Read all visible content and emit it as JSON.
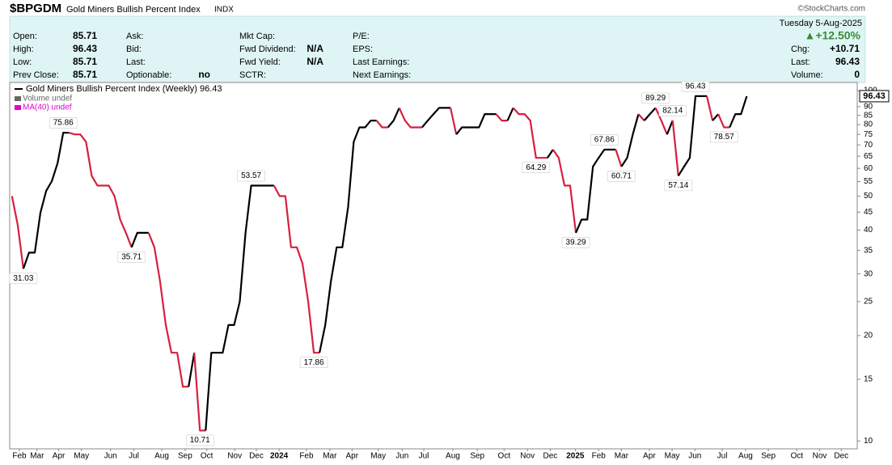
{
  "header": {
    "symbol": "$BPGDM",
    "name": "Gold Miners Bullish Percent Index",
    "exchange": "INDX",
    "source": "©StockCharts.com",
    "date": "Tuesday  5-Aug-2025",
    "change_percent": "▲+12.50%",
    "columns": [
      [
        {
          "label": "Open:",
          "value": "85.71"
        },
        {
          "label": "High:",
          "value": "96.43"
        },
        {
          "label": "Low:",
          "value": "85.71"
        },
        {
          "label": "Prev Close:",
          "value": "85.71"
        }
      ],
      [
        {
          "label": "Ask:"
        },
        {
          "label": "Bid:"
        },
        {
          "label": "Last:"
        },
        {
          "label": "Optionable:",
          "value": "no"
        }
      ],
      [
        {
          "label": "Mkt Cap:"
        },
        {
          "label": "Fwd Dividend:",
          "value": "N/A"
        },
        {
          "label": "Fwd Yield:",
          "value": "N/A"
        },
        {
          "label": "SCTR:"
        }
      ],
      [
        {
          "label": "P/E:"
        },
        {
          "label": "EPS:"
        },
        {
          "label": "Last Earnings:"
        },
        {
          "label": "Next Earnings:"
        }
      ]
    ],
    "right_column": [
      {
        "label": "Chg:",
        "value": "+10.71"
      },
      {
        "label": "Last:",
        "value": "96.43"
      },
      {
        "label": "Volume:",
        "value": "0"
      }
    ]
  },
  "chart_data": {
    "type": "line",
    "log_scale": true,
    "grid": false,
    "up_color": "#000000",
    "down_color": "#d6203f",
    "legend_extra": [
      {
        "name": "Volume undef",
        "color": "#666666"
      },
      {
        "name": "MA(40) undef",
        "color": "#e000d0"
      }
    ],
    "x": [
      0,
      1,
      2,
      3,
      4,
      5,
      6,
      7,
      8,
      9,
      10,
      11,
      12,
      13,
      14,
      15,
      16,
      17,
      18,
      19,
      20,
      21,
      22,
      23,
      24,
      25,
      26,
      27,
      28,
      29,
      30,
      31,
      32,
      33,
      34,
      35,
      36,
      37,
      38,
      39,
      40,
      41,
      42,
      43,
      44,
      45,
      46,
      47,
      48,
      49,
      50,
      51,
      52,
      53,
      54,
      55,
      56,
      57,
      58,
      59,
      60,
      61,
      62,
      63,
      64,
      65,
      66,
      67,
      68,
      69,
      70,
      71,
      72,
      73,
      74,
      75,
      76,
      77,
      78,
      79,
      80,
      81,
      82,
      83,
      84,
      85,
      86,
      87,
      88,
      89,
      90,
      91,
      92,
      93,
      94,
      95,
      96,
      97,
      98,
      99,
      100,
      101,
      102,
      103,
      104,
      105,
      106,
      107,
      108,
      109,
      110,
      111,
      112,
      113,
      114,
      115,
      116,
      117,
      118,
      119,
      120,
      121,
      122,
      123,
      124,
      125,
      126,
      127,
      128,
      129
    ],
    "series": [
      {
        "name": "Gold Miners Bullish Percent Index (Weekly) 96.43",
        "values": [
          50,
          41.38,
          31.03,
          34.48,
          34.48,
          44.83,
          51.72,
          55.17,
          62.07,
          75.86,
          75.86,
          75,
          75,
          71.43,
          57.14,
          53.57,
          53.57,
          53.57,
          50,
          42.86,
          39.29,
          35.71,
          39.29,
          39.29,
          39.29,
          35.71,
          28.57,
          21.43,
          17.86,
          17.86,
          14.29,
          14.29,
          17.86,
          10.71,
          10.71,
          17.86,
          17.86,
          17.86,
          21.43,
          21.43,
          25,
          39.29,
          53.57,
          53.57,
          53.57,
          53.57,
          53.57,
          50,
          50,
          35.71,
          35.71,
          32.14,
          25,
          17.86,
          17.86,
          21.43,
          28.57,
          35.71,
          35.71,
          46.43,
          71.43,
          78.57,
          78.57,
          82.14,
          82.14,
          78.57,
          78.57,
          82.14,
          89.29,
          82.14,
          78.57,
          78.57,
          78.57,
          82.14,
          85.71,
          89.29,
          89.29,
          89.29,
          75,
          78.57,
          78.57,
          78.57,
          78.57,
          85.71,
          85.71,
          85.71,
          82.14,
          82.14,
          89.29,
          85.71,
          85.71,
          82.14,
          64.29,
          64.29,
          64.29,
          67.86,
          64.29,
          53.57,
          53.57,
          39.29,
          42.86,
          42.86,
          60.71,
          64.29,
          67.86,
          67.86,
          67.86,
          60.71,
          64.29,
          75,
          85.71,
          82.14,
          85.71,
          89.29,
          82.14,
          75,
          82.14,
          57.14,
          60.71,
          64.29,
          96.43,
          96.43,
          96.43,
          82.14,
          85.71,
          78.57,
          78.57,
          85.71,
          85.71,
          96.43
        ],
        "label_positions": [
          null,
          null,
          "below",
          null,
          null,
          null,
          null,
          null,
          null,
          "above",
          null,
          null,
          null,
          null,
          null,
          null,
          null,
          null,
          null,
          null,
          null,
          "below",
          null,
          null,
          null,
          null,
          null,
          null,
          null,
          null,
          null,
          null,
          null,
          "below",
          null,
          null,
          null,
          null,
          null,
          null,
          null,
          null,
          "above",
          null,
          null,
          null,
          null,
          null,
          null,
          null,
          null,
          null,
          null,
          "below",
          null,
          null,
          null,
          null,
          null,
          null,
          null,
          null,
          null,
          null,
          null,
          null,
          null,
          null,
          null,
          null,
          null,
          null,
          null,
          null,
          null,
          null,
          null,
          null,
          null,
          null,
          null,
          null,
          null,
          null,
          null,
          null,
          null,
          null,
          null,
          null,
          null,
          null,
          "below",
          null,
          null,
          null,
          null,
          null,
          null,
          "below",
          null,
          null,
          null,
          null,
          "above",
          null,
          null,
          "below",
          null,
          null,
          null,
          null,
          null,
          "above",
          null,
          null,
          "above",
          "below",
          null,
          null,
          "above",
          null,
          null,
          null,
          null,
          "below",
          null,
          null,
          null,
          null
        ]
      }
    ],
    "xlim": [
      -0.4,
      148.4
    ],
    "xticks": [
      {
        "value": 1.3,
        "label": "Feb"
      },
      {
        "value": 4.4,
        "label": "Mar"
      },
      {
        "value": 8.2,
        "label": "Apr"
      },
      {
        "value": 12.2,
        "label": "May"
      },
      {
        "value": 17.3,
        "label": "Jun"
      },
      {
        "value": 21.4,
        "label": "Jul"
      },
      {
        "value": 26.3,
        "label": "Aug"
      },
      {
        "value": 30.4,
        "label": "Sep"
      },
      {
        "value": 34.2,
        "label": "Oct"
      },
      {
        "value": 39.1,
        "label": "Nov"
      },
      {
        "value": 42.9,
        "label": "Dec"
      },
      {
        "value": 46.9,
        "label": "2024"
      },
      {
        "value": 51.7,
        "label": "Feb"
      },
      {
        "value": 55.8,
        "label": "Mar"
      },
      {
        "value": 59.7,
        "label": "Apr"
      },
      {
        "value": 64.3,
        "label": "May"
      },
      {
        "value": 68.5,
        "label": "Jun"
      },
      {
        "value": 72.3,
        "label": "Jul"
      },
      {
        "value": 77.4,
        "label": "Aug"
      },
      {
        "value": 81.7,
        "label": "Sep"
      },
      {
        "value": 86.4,
        "label": "Oct"
      },
      {
        "value": 90.5,
        "label": "Nov"
      },
      {
        "value": 94.5,
        "label": "Dec"
      },
      {
        "value": 98.9,
        "label": "2025"
      },
      {
        "value": 103,
        "label": "Feb"
      },
      {
        "value": 107,
        "label": "Mar"
      },
      {
        "value": 111.9,
        "label": "Apr"
      },
      {
        "value": 115.9,
        "label": "May"
      },
      {
        "value": 119.9,
        "label": "Jun"
      },
      {
        "value": 124.7,
        "label": "Jul"
      },
      {
        "value": 128.8,
        "label": "Aug"
      },
      {
        "value": 132.8,
        "label": "Sep"
      },
      {
        "value": 137.8,
        "label": "Oct"
      },
      {
        "value": 141.8,
        "label": "Nov"
      },
      {
        "value": 145.6,
        "label": "Dec"
      }
    ],
    "ylim": [
      9.5,
      105.5
    ],
    "yticks": [
      10,
      15,
      20,
      25,
      30,
      35,
      40,
      45,
      50,
      55,
      60,
      65,
      70,
      75,
      80,
      85,
      90,
      100
    ]
  }
}
